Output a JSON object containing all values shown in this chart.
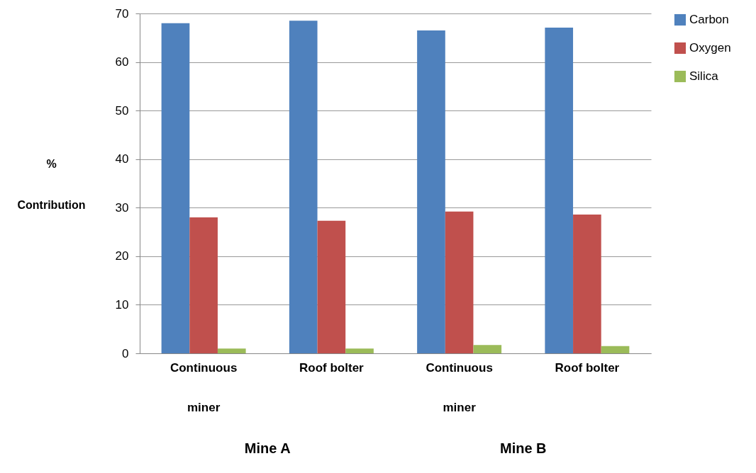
{
  "chart_data": {
    "type": "bar",
    "ylabel": "% Contribution",
    "categories": [
      "Continuous miner",
      "Roof bolter",
      "Continuous miner",
      "Roof bolter"
    ],
    "series": [
      {
        "name": "Carbon",
        "color": "#4f81bd",
        "values": [
          68.0,
          68.5,
          66.5,
          67.1
        ]
      },
      {
        "name": "Oxygen",
        "color": "#c0504d",
        "values": [
          28.0,
          27.3,
          29.2,
          28.6
        ]
      },
      {
        "name": "Silica",
        "color": "#9bbb59",
        "values": [
          1.0,
          1.0,
          1.7,
          1.5
        ]
      }
    ],
    "annotations": [
      "Mine A",
      "Mine B"
    ],
    "ylim": [
      0,
      70
    ],
    "yticks": [
      0,
      10,
      20,
      30,
      40,
      50,
      60,
      70
    ],
    "grid": "y",
    "legend": "right"
  }
}
